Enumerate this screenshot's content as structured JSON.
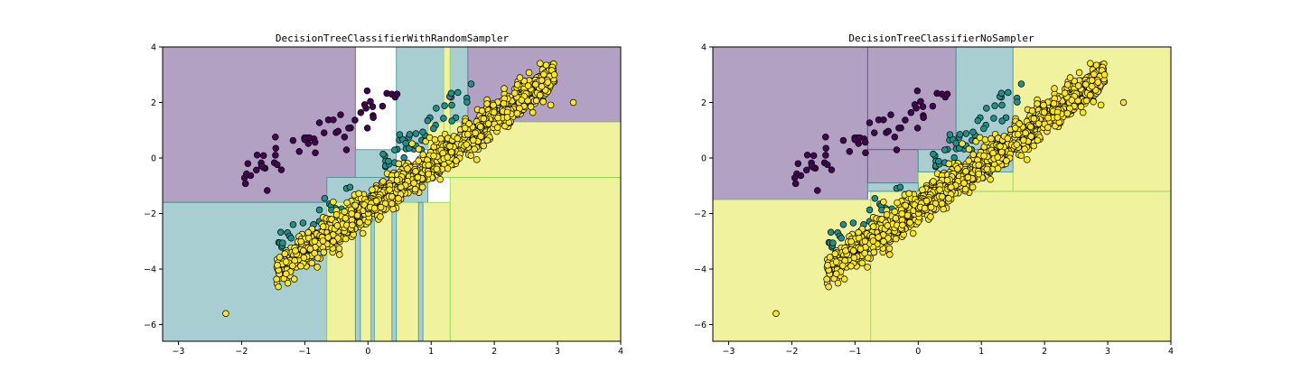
{
  "figure": {
    "background": "#ffffff"
  },
  "chart_data": [
    {
      "type": "scatter",
      "title": "DecisionTreeClassifierWithRandomSampler",
      "xlabel": "",
      "ylabel": "",
      "xlim": [
        -3.25,
        4.0
      ],
      "ylim": [
        -6.6,
        4.0
      ],
      "xticks": [
        -3,
        -2,
        -1,
        0,
        1,
        2,
        3,
        4
      ],
      "yticks": [
        -6,
        -4,
        -2,
        0,
        2,
        4
      ],
      "grid": false,
      "classes": [
        {
          "fill": "#b3a1c3",
          "boundary": "#5a4a7a",
          "point_color": "#440154"
        },
        {
          "fill": "#a8ced1",
          "boundary": "#3b8f91",
          "point_color": "#21908c"
        },
        {
          "fill": "#f0f29e",
          "boundary": "#8cd34a",
          "point_color": "#fde725"
        }
      ],
      "regions": [
        {
          "cls": 0,
          "x": [
            -3.25,
            -0.2
          ],
          "y": [
            -1.6,
            4.0
          ]
        },
        {
          "cls": 0,
          "x": [
            1.58,
            4.0
          ],
          "y": [
            1.3,
            4.0
          ]
        },
        {
          "cls": 1,
          "x": [
            0.45,
            1.58
          ],
          "y": [
            0.3,
            4.0
          ]
        },
        {
          "cls": 1,
          "x": [
            -0.2,
            0.45
          ],
          "y": [
            -0.9,
            0.3
          ]
        },
        {
          "cls": 1,
          "x": [
            -3.25,
            -0.65
          ],
          "y": [
            -6.6,
            -1.6
          ]
        },
        {
          "cls": 1,
          "x": [
            -0.65,
            0.95
          ],
          "y": [
            -1.6,
            -0.7
          ]
        },
        {
          "cls": 2,
          "x": [
            0.95,
            4.0
          ],
          "y": [
            -0.7,
            1.3
          ]
        },
        {
          "cls": 2,
          "x": [
            1.3,
            4.0
          ],
          "y": [
            -6.6,
            -0.7
          ]
        },
        {
          "cls": 2,
          "x": [
            -0.65,
            1.3
          ],
          "y": [
            -6.6,
            -1.6
          ]
        },
        {
          "cls": 1,
          "x": [
            -0.2,
            -0.12
          ],
          "y": [
            -6.6,
            -1.6
          ]
        },
        {
          "cls": 1,
          "x": [
            0.05,
            0.1
          ],
          "y": [
            -6.6,
            -1.6
          ]
        },
        {
          "cls": 1,
          "x": [
            0.38,
            0.45
          ],
          "y": [
            -6.6,
            -1.6
          ]
        },
        {
          "cls": 1,
          "x": [
            0.8,
            0.87
          ],
          "y": [
            -6.6,
            -1.6
          ]
        },
        {
          "cls": 2,
          "x": [
            1.2,
            1.3
          ],
          "y": [
            0.3,
            4.0
          ]
        },
        {
          "cls": 2,
          "x": [
            0.45,
            0.95
          ],
          "y": [
            -0.9,
            -0.7
          ]
        }
      ],
      "clusters": [
        {
          "cls": 0,
          "seed": 11,
          "n": 55,
          "x": [
            -2.2,
            0.4
          ],
          "y": [
            -0.7,
            2.2
          ],
          "slope": 0.15,
          "spread": 1.0
        },
        {
          "cls": 1,
          "seed": 23,
          "n": 45,
          "x": [
            0.3,
            1.6
          ],
          "y": [
            -0.3,
            2.4
          ],
          "slope": 1.1,
          "spread": 0.55
        },
        {
          "cls": 1,
          "seed": 37,
          "n": 25,
          "x": [
            -1.6,
            -0.2
          ],
          "y": [
            -3.2,
            -1.2
          ],
          "slope": 1.0,
          "spread": 0.35
        },
        {
          "cls": 2,
          "seed": 51,
          "n": 1400,
          "x": [
            -1.45,
            2.95
          ],
          "y": [
            -4.1,
            2.95
          ],
          "slope": 1.38,
          "spread": 0.55
        }
      ],
      "outliers": [
        {
          "cls": 2,
          "x": -2.25,
          "y": -5.6
        },
        {
          "cls": 2,
          "x": 3.25,
          "y": 2.0
        },
        {
          "cls": 2,
          "x": 2.95,
          "y": 3.0
        }
      ]
    },
    {
      "type": "scatter",
      "title": "DecisionTreeClassifierNoSampler",
      "xlabel": "",
      "ylabel": "",
      "xlim": [
        -3.25,
        4.0
      ],
      "ylim": [
        -6.6,
        4.0
      ],
      "xticks": [
        -3,
        -2,
        -1,
        0,
        1,
        2,
        3,
        4
      ],
      "yticks": [
        -6,
        -4,
        -2,
        0,
        2,
        4
      ],
      "grid": false,
      "classes": [
        {
          "fill": "#b3a1c3",
          "boundary": "#5a4a7a",
          "point_color": "#440154"
        },
        {
          "fill": "#a8ced1",
          "boundary": "#3b8f91",
          "point_color": "#21908c"
        },
        {
          "fill": "#f0f29e",
          "boundary": "#8cd34a",
          "point_color": "#fde725"
        }
      ],
      "regions": [
        {
          "cls": 0,
          "x": [
            -3.25,
            -0.8
          ],
          "y": [
            -1.5,
            4.0
          ]
        },
        {
          "cls": 0,
          "x": [
            -0.8,
            0.6
          ],
          "y": [
            0.3,
            4.0
          ]
        },
        {
          "cls": 0,
          "x": [
            -0.8,
            0.0
          ],
          "y": [
            -0.9,
            0.3
          ]
        },
        {
          "cls": 2,
          "x": [
            -3.25,
            -0.75
          ],
          "y": [
            -6.6,
            -1.5
          ]
        },
        {
          "cls": 2,
          "x": [
            -0.75,
            4.0
          ],
          "y": [
            -6.6,
            -1.2
          ]
        },
        {
          "cls": 2,
          "x": [
            1.5,
            4.0
          ],
          "y": [
            -1.2,
            4.0
          ]
        },
        {
          "cls": 2,
          "x": [
            0.0,
            1.5
          ],
          "y": [
            -1.2,
            -0.5
          ]
        },
        {
          "cls": 1,
          "x": [
            0.6,
            1.5
          ],
          "y": [
            0.3,
            4.0
          ]
        },
        {
          "cls": 1,
          "x": [
            0.0,
            1.5
          ],
          "y": [
            -0.5,
            0.3
          ]
        },
        {
          "cls": 1,
          "x": [
            -0.8,
            0.0
          ],
          "y": [
            -1.2,
            -0.9
          ]
        }
      ],
      "clusters": [
        {
          "cls": 0,
          "seed": 11,
          "n": 55,
          "x": [
            -2.2,
            0.4
          ],
          "y": [
            -0.7,
            2.2
          ],
          "slope": 0.15,
          "spread": 1.0
        },
        {
          "cls": 1,
          "seed": 23,
          "n": 45,
          "x": [
            0.3,
            1.6
          ],
          "y": [
            -0.3,
            2.4
          ],
          "slope": 1.1,
          "spread": 0.55
        },
        {
          "cls": 1,
          "seed": 37,
          "n": 25,
          "x": [
            -1.6,
            -0.2
          ],
          "y": [
            -3.2,
            -1.2
          ],
          "slope": 1.0,
          "spread": 0.35
        },
        {
          "cls": 2,
          "seed": 51,
          "n": 1400,
          "x": [
            -1.45,
            2.95
          ],
          "y": [
            -4.1,
            2.95
          ],
          "slope": 1.38,
          "spread": 0.55
        }
      ],
      "outliers": [
        {
          "cls": 2,
          "x": -2.25,
          "y": -5.6
        },
        {
          "cls": 2,
          "x": 3.25,
          "y": 2.0
        },
        {
          "cls": 2,
          "x": 2.95,
          "y": 3.0
        }
      ]
    }
  ]
}
